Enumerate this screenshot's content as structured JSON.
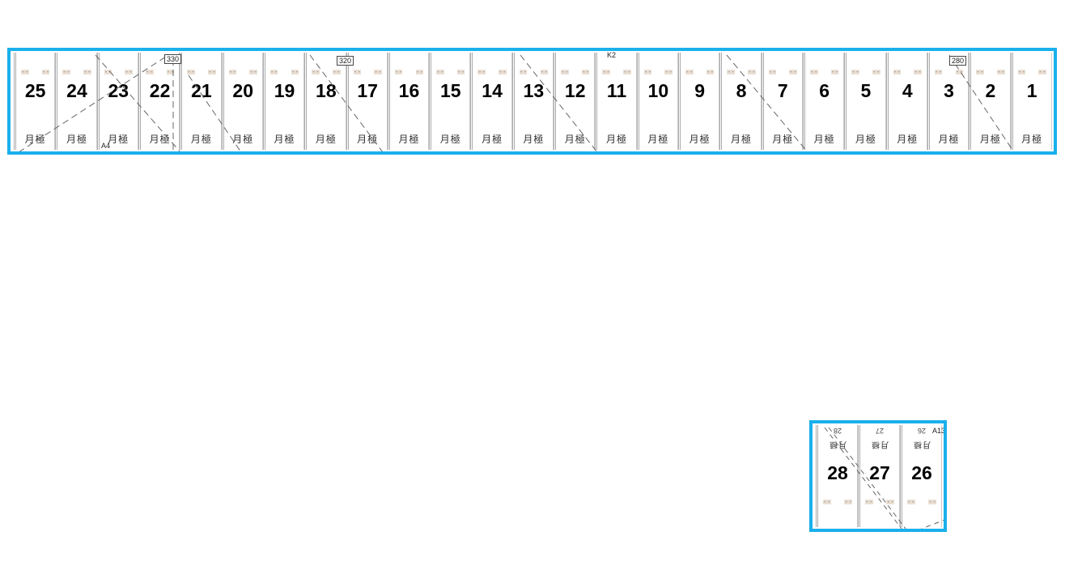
{
  "top_group": {
    "panels": [
      {
        "number": "25",
        "label": "月極"
      },
      {
        "number": "24",
        "label": "月極"
      },
      {
        "number": "23",
        "label": "月極"
      },
      {
        "number": "22",
        "label": "月極"
      },
      {
        "number": "21",
        "label": "月極"
      },
      {
        "number": "20",
        "label": "月極"
      },
      {
        "number": "19",
        "label": "月極"
      },
      {
        "number": "18",
        "label": "月極"
      },
      {
        "number": "17",
        "label": "月極"
      },
      {
        "number": "16",
        "label": "月極"
      },
      {
        "number": "15",
        "label": "月極"
      },
      {
        "number": "14",
        "label": "月極"
      },
      {
        "number": "13",
        "label": "月極"
      },
      {
        "number": "12",
        "label": "月極"
      },
      {
        "number": "11",
        "label": "月極"
      },
      {
        "number": "10",
        "label": "月極"
      },
      {
        "number": "9",
        "label": "月極"
      },
      {
        "number": "8",
        "label": "月極"
      },
      {
        "number": "7",
        "label": "月極"
      },
      {
        "number": "6",
        "label": "月極"
      },
      {
        "number": "5",
        "label": "月極"
      },
      {
        "number": "4",
        "label": "月極"
      },
      {
        "number": "3",
        "label": "月極"
      },
      {
        "number": "2",
        "label": "月極"
      },
      {
        "number": "1",
        "label": "月極"
      }
    ],
    "annotations": {
      "dim_a": "330",
      "dim_b": "320",
      "dim_c": "280",
      "mark_k2": "K2",
      "mark_a4": "A4"
    }
  },
  "bottom_group": {
    "panels": [
      {
        "number": "28",
        "label": "月極",
        "small": "28"
      },
      {
        "number": "27",
        "label": "月極",
        "small": "27"
      },
      {
        "number": "26",
        "label": "月極",
        "small": "26"
      }
    ],
    "annotations": {
      "mark_a13": "A13"
    }
  },
  "colors": {
    "highlight_border": "#1ab0ec"
  }
}
